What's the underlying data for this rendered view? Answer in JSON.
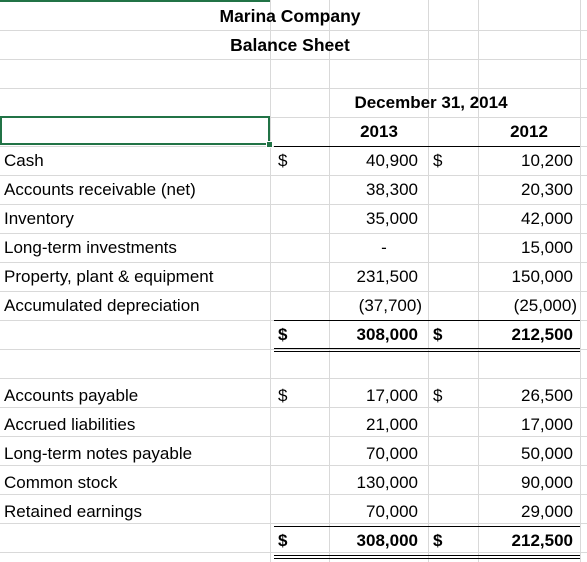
{
  "company": "Marina Company",
  "statement": "Balance Sheet",
  "period_header": "December 31, 2014",
  "year1": "2013",
  "year2": "2012",
  "currency": "$",
  "assets": [
    {
      "label": "Cash",
      "y2013": "40,900",
      "y2012": "10,200"
    },
    {
      "label": "Accounts receivable (net)",
      "y2013": "38,300",
      "y2012": "20,300"
    },
    {
      "label": "Inventory",
      "y2013": "35,000",
      "y2012": "42,000"
    },
    {
      "label": "Long-term investments",
      "y2013": "-",
      "y2012": "15,000"
    },
    {
      "label": "Property, plant & equipment",
      "y2013": "231,500",
      "y2012": "150,000"
    },
    {
      "label": "Accumulated depreciation",
      "y2013": "(37,700)",
      "y2012": "(25,000)"
    }
  ],
  "assets_total": {
    "y2013": "308,000",
    "y2012": "212,500"
  },
  "liabilities": [
    {
      "label": "Accounts payable",
      "y2013": "17,000",
      "y2012": "26,500"
    },
    {
      "label": "Accrued liabilities",
      "y2013": "21,000",
      "y2012": "17,000"
    },
    {
      "label": "Long-term notes payable",
      "y2013": "70,000",
      "y2012": "50,000"
    },
    {
      "label": "Common stock",
      "y2013": "130,000",
      "y2012": "90,000"
    },
    {
      "label": "Retained earnings",
      "y2013": "70,000",
      "y2012": "29,000"
    }
  ],
  "liabilities_total": {
    "y2013": "308,000",
    "y2012": "212,500"
  },
  "colors": {
    "selection": "#217346",
    "gridline": "#d9d9d9"
  }
}
